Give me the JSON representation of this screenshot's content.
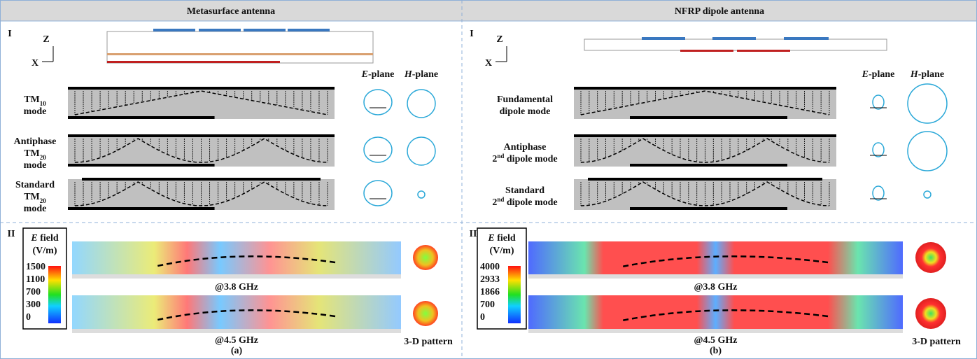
{
  "panels": [
    {
      "title": "Metasurface antenna",
      "section_i": "I",
      "section_ii": "II",
      "axis_z": "Z",
      "axis_x": "X",
      "e_plane": [
        [
          {
            "text": "E",
            "style": "i"
          },
          {
            "text": "-plane"
          }
        ]
      ],
      "h_plane": [
        [
          {
            "text": "H",
            "style": "i"
          },
          {
            "text": "-plane"
          }
        ]
      ],
      "modes": [
        [
          [
            {
              "text": "TM"
            },
            {
              "text": "10",
              "style": "sub"
            }
          ],
          [
            {
              "text": "mode"
            }
          ]
        ],
        [
          [
            {
              "text": "Antiphase"
            }
          ],
          [
            {
              "text": "TM"
            },
            {
              "text": "20",
              "style": "sub"
            }
          ],
          [
            {
              "text": "mode"
            }
          ]
        ],
        [
          [
            {
              "text": "Standard"
            }
          ],
          [
            {
              "text": "TM"
            },
            {
              "text": "20",
              "style": "sub"
            }
          ],
          [
            {
              "text": "mode"
            }
          ]
        ]
      ],
      "colorbar_title": [
        [
          {
            "text": "E",
            "style": "i"
          },
          {
            "text": " field"
          }
        ],
        [
          {
            "text": "(V/m)"
          }
        ]
      ],
      "colorbar_ticks": [
        "1500",
        "1100",
        "700",
        "300",
        "0"
      ],
      "freq_labels": [
        "@3.8 GHz",
        "@4.5 GHz"
      ],
      "pattern_label": "3-D pattern",
      "caption": "(a)"
    },
    {
      "title": "NFRP dipole antenna",
      "section_i": "I",
      "section_ii": "II",
      "axis_z": "Z",
      "axis_x": "X",
      "e_plane": [
        [
          {
            "text": "E",
            "style": "i"
          },
          {
            "text": "-plane"
          }
        ]
      ],
      "h_plane": [
        [
          {
            "text": "H",
            "style": "i"
          },
          {
            "text": "-plane"
          }
        ]
      ],
      "modes": [
        [
          [
            {
              "text": "Fundamental"
            }
          ],
          [
            {
              "text": "dipole mode"
            }
          ]
        ],
        [
          [
            {
              "text": "Antiphase"
            }
          ],
          [
            {
              "text": "2"
            },
            {
              "text": "nd",
              "style": "sup"
            },
            {
              "text": " dipole mode"
            }
          ]
        ],
        [
          [
            {
              "text": "Standard"
            }
          ],
          [
            {
              "text": "2"
            },
            {
              "text": "nd",
              "style": "sup"
            },
            {
              "text": " dipole mode"
            }
          ]
        ]
      ],
      "colorbar_title": [
        [
          {
            "text": "E",
            "style": "i"
          },
          {
            "text": " field"
          }
        ],
        [
          {
            "text": "(V/m)"
          }
        ]
      ],
      "colorbar_ticks": [
        "4000",
        "2933",
        "1866",
        "700",
        "0"
      ],
      "freq_labels": [
        "@3.8 GHz",
        "@4.5 GHz"
      ],
      "pattern_label": "3-D pattern",
      "caption": "(b)"
    }
  ]
}
